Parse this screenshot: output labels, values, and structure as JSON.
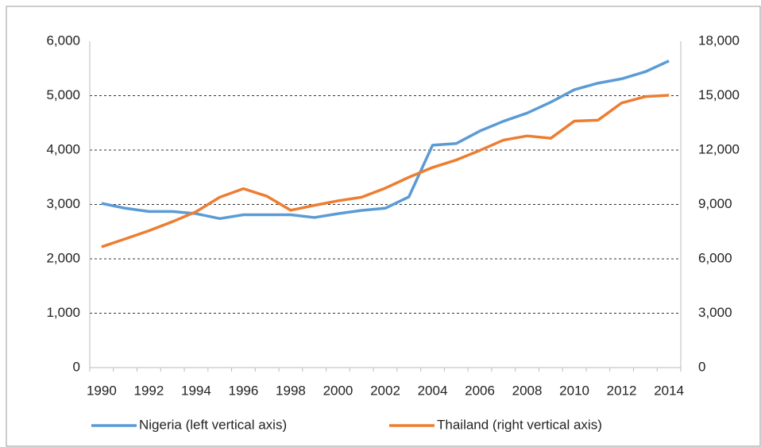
{
  "chart_data": {
    "type": "line",
    "categories": [
      "1990",
      null,
      "1992",
      null,
      "1994",
      null,
      "1996",
      null,
      "1998",
      null,
      "2000",
      null,
      "2002",
      null,
      "2004",
      null,
      "2006",
      null,
      "2008",
      null,
      "2010",
      null,
      "2012",
      null,
      "2014"
    ],
    "series": [
      {
        "name": "Nigeria (left vertical axis)",
        "color": "#5b9bd5",
        "axis": "y",
        "values": [
          3020,
          2930,
          2870,
          2870,
          2830,
          2740,
          2810,
          2810,
          2810,
          2760,
          2830,
          2890,
          2930,
          3140,
          4090,
          4120,
          4350,
          4530,
          4680,
          4880,
          5110,
          5230,
          5310,
          5440,
          5640
        ]
      },
      {
        "name": "Thailand (right vertical axis)",
        "color": "#ed7d31",
        "axis": "y2",
        "values": [
          6660,
          7100,
          7550,
          8050,
          8600,
          9400,
          9870,
          9450,
          8680,
          8950,
          9200,
          9400,
          9900,
          10500,
          11040,
          11450,
          11980,
          12550,
          12780,
          12650,
          13600,
          13650,
          14600,
          14950,
          15020
        ]
      }
    ],
    "ylim": [
      0,
      6000
    ],
    "yticks": [
      0,
      {
        "value": 1000,
        "label": "1,000"
      },
      {
        "value": 2000,
        "label": "2,000"
      },
      {
        "value": 3000,
        "label": "3,000"
      },
      {
        "value": 4000,
        "label": "4,000"
      },
      {
        "value": 5000,
        "label": "5,000"
      },
      {
        "value": 6000,
        "label": "6,000"
      }
    ],
    "y2lim": [
      0,
      18000
    ],
    "y2ticks": [
      0,
      {
        "value": 3000,
        "label": "3,000"
      },
      {
        "value": 6000,
        "label": "6,000"
      },
      {
        "value": 9000,
        "label": "9,000"
      },
      {
        "value": 12000,
        "label": "12,000"
      },
      {
        "value": 15000,
        "label": "15,000"
      },
      {
        "value": 18000,
        "label": "18,000"
      }
    ],
    "grid": true,
    "legend": "bottom"
  }
}
